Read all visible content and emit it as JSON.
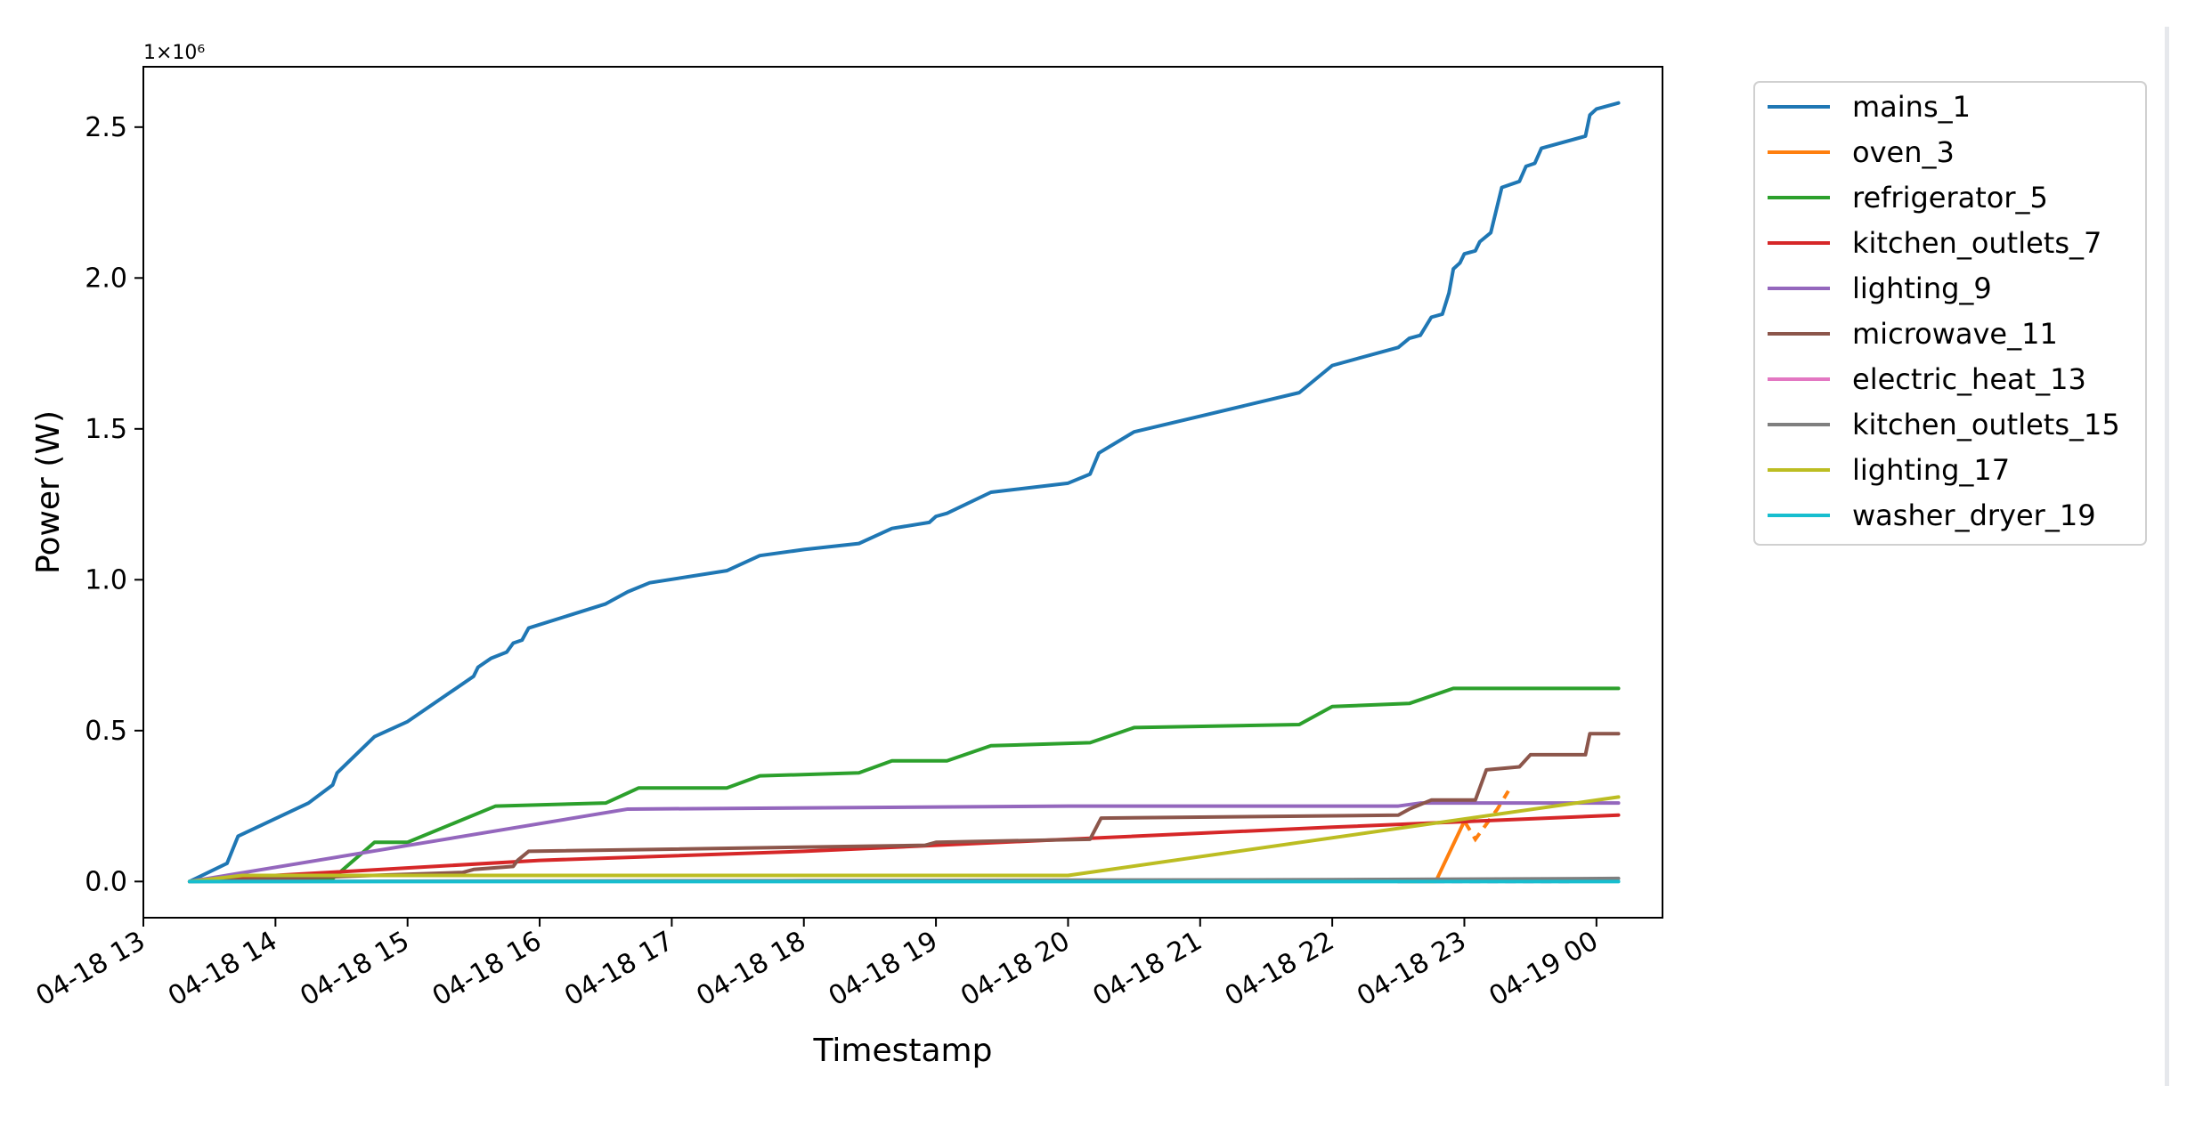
{
  "chart_data": {
    "type": "line",
    "xlabel": "Timestamp",
    "ylabel": "Power (W)",
    "y_multiplier_label": "1×10⁶",
    "xlim": [
      "2011-04-18 13:00",
      "2011-04-19 00:30"
    ],
    "ylim": [
      -0.12,
      2.7
    ],
    "x_ticks": [
      "04-18 13",
      "04-18 14",
      "04-18 15",
      "04-18 16",
      "04-18 17",
      "04-18 18",
      "04-18 19",
      "04-18 20",
      "04-18 21",
      "04-18 22",
      "04-18 23",
      "04-19 00"
    ],
    "y_ticks": [
      "0.0",
      "0.5",
      "1.0",
      "1.5",
      "2.0",
      "2.5"
    ],
    "legend_position": "outside-right-top",
    "grid": false,
    "series": [
      {
        "name": "mains_1",
        "color": "#1f77b4",
        "points": [
          [
            "2011-04-18 13:21",
            0.0
          ],
          [
            "2011-04-18 13:38",
            0.06
          ],
          [
            "2011-04-18 13:43",
            0.15
          ],
          [
            "2011-04-18 14:15",
            0.26
          ],
          [
            "2011-04-18 14:26",
            0.32
          ],
          [
            "2011-04-18 14:28",
            0.36
          ],
          [
            "2011-04-18 14:45",
            0.48
          ],
          [
            "2011-04-18 15:00",
            0.53
          ],
          [
            "2011-04-18 15:30",
            0.68
          ],
          [
            "2011-04-18 15:32",
            0.71
          ],
          [
            "2011-04-18 15:38",
            0.74
          ],
          [
            "2011-04-18 15:45",
            0.76
          ],
          [
            "2011-04-18 15:48",
            0.79
          ],
          [
            "2011-04-18 15:52",
            0.8
          ],
          [
            "2011-04-18 15:55",
            0.84
          ],
          [
            "2011-04-18 16:30",
            0.92
          ],
          [
            "2011-04-18 16:40",
            0.96
          ],
          [
            "2011-04-18 16:50",
            0.99
          ],
          [
            "2011-04-18 17:25",
            1.03
          ],
          [
            "2011-04-18 17:40",
            1.08
          ],
          [
            "2011-04-18 18:00",
            1.1
          ],
          [
            "2011-04-18 18:25",
            1.12
          ],
          [
            "2011-04-18 18:40",
            1.17
          ],
          [
            "2011-04-18 18:57",
            1.19
          ],
          [
            "2011-04-18 19:00",
            1.21
          ],
          [
            "2011-04-18 19:05",
            1.22
          ],
          [
            "2011-04-18 19:25",
            1.29
          ],
          [
            "2011-04-18 20:00",
            1.32
          ],
          [
            "2011-04-18 20:10",
            1.35
          ],
          [
            "2011-04-18 20:14",
            1.42
          ],
          [
            "2011-04-18 20:30",
            1.49
          ],
          [
            "2011-04-18 21:45",
            1.62
          ],
          [
            "2011-04-18 22:00",
            1.71
          ],
          [
            "2011-04-18 22:30",
            1.77
          ],
          [
            "2011-04-18 22:35",
            1.8
          ],
          [
            "2011-04-18 22:40",
            1.81
          ],
          [
            "2011-04-18 22:45",
            1.87
          ],
          [
            "2011-04-18 22:50",
            1.88
          ],
          [
            "2011-04-18 22:53",
            1.95
          ],
          [
            "2011-04-18 22:55",
            2.03
          ],
          [
            "2011-04-18 22:58",
            2.05
          ],
          [
            "2011-04-18 23:00",
            2.08
          ],
          [
            "2011-04-18 23:05",
            2.09
          ],
          [
            "2011-04-18 23:07",
            2.12
          ],
          [
            "2011-04-18 23:12",
            2.15
          ],
          [
            "2011-04-18 23:17",
            2.3
          ],
          [
            "2011-04-18 23:25",
            2.32
          ],
          [
            "2011-04-18 23:28",
            2.37
          ],
          [
            "2011-04-18 23:32",
            2.38
          ],
          [
            "2011-04-18 23:35",
            2.43
          ],
          [
            "2011-04-18 23:55",
            2.47
          ],
          [
            "2011-04-18 23:57",
            2.54
          ],
          [
            "2011-04-19 00:00",
            2.56
          ],
          [
            "2011-04-19 00:10",
            2.58
          ]
        ]
      },
      {
        "name": "oven_3",
        "color": "#ff7f0e",
        "dashed_after": 2,
        "points": [
          [
            "2011-04-18 22:30",
            0.0
          ],
          [
            "2011-04-18 22:47",
            0.0
          ],
          [
            "2011-04-18 23:00",
            0.2
          ],
          [
            "2011-04-18 23:05",
            0.14
          ],
          [
            "2011-04-18 23:15",
            0.24
          ],
          [
            "2011-04-18 23:20",
            0.3
          ]
        ]
      },
      {
        "name": "refrigerator_5",
        "color": "#2ca02c",
        "points": [
          [
            "2011-04-18 13:21",
            0.0
          ],
          [
            "2011-04-18 14:26",
            0.01
          ],
          [
            "2011-04-18 14:45",
            0.13
          ],
          [
            "2011-04-18 15:00",
            0.13
          ],
          [
            "2011-04-18 15:40",
            0.25
          ],
          [
            "2011-04-18 16:30",
            0.26
          ],
          [
            "2011-04-18 16:45",
            0.31
          ],
          [
            "2011-04-18 17:25",
            0.31
          ],
          [
            "2011-04-18 17:40",
            0.35
          ],
          [
            "2011-04-18 18:25",
            0.36
          ],
          [
            "2011-04-18 18:40",
            0.4
          ],
          [
            "2011-04-18 19:05",
            0.4
          ],
          [
            "2011-04-18 19:25",
            0.45
          ],
          [
            "2011-04-18 20:10",
            0.46
          ],
          [
            "2011-04-18 20:30",
            0.51
          ],
          [
            "2011-04-18 21:45",
            0.52
          ],
          [
            "2011-04-18 22:00",
            0.58
          ],
          [
            "2011-04-18 22:35",
            0.59
          ],
          [
            "2011-04-18 22:55",
            0.64
          ],
          [
            "2011-04-19 00:10",
            0.64
          ]
        ]
      },
      {
        "name": "kitchen_outlets_7",
        "color": "#d62728",
        "points": [
          [
            "2011-04-18 13:21",
            0.0
          ],
          [
            "2011-04-18 14:00",
            0.02
          ],
          [
            "2011-04-18 16:00",
            0.07
          ],
          [
            "2011-04-18 18:00",
            0.1
          ],
          [
            "2011-04-18 20:00",
            0.14
          ],
          [
            "2011-04-18 22:00",
            0.18
          ],
          [
            "2011-04-19 00:10",
            0.22
          ]
        ]
      },
      {
        "name": "lighting_9",
        "color": "#9467bd",
        "points": [
          [
            "2011-04-18 13:21",
            0.0
          ],
          [
            "2011-04-18 16:40",
            0.24
          ],
          [
            "2011-04-18 20:00",
            0.25
          ],
          [
            "2011-04-18 22:30",
            0.25
          ],
          [
            "2011-04-18 22:40",
            0.26
          ],
          [
            "2011-04-19 00:10",
            0.26
          ]
        ]
      },
      {
        "name": "microwave_11",
        "color": "#8c564b",
        "points": [
          [
            "2011-04-18 13:21",
            0.0
          ],
          [
            "2011-04-18 15:25",
            0.03
          ],
          [
            "2011-04-18 15:30",
            0.04
          ],
          [
            "2011-04-18 15:48",
            0.05
          ],
          [
            "2011-04-18 15:50",
            0.07
          ],
          [
            "2011-04-18 15:55",
            0.1
          ],
          [
            "2011-04-18 18:55",
            0.12
          ],
          [
            "2011-04-18 19:00",
            0.13
          ],
          [
            "2011-04-18 20:10",
            0.14
          ],
          [
            "2011-04-18 20:15",
            0.21
          ],
          [
            "2011-04-18 22:30",
            0.22
          ],
          [
            "2011-04-18 22:35",
            0.24
          ],
          [
            "2011-04-18 22:45",
            0.27
          ],
          [
            "2011-04-18 23:05",
            0.27
          ],
          [
            "2011-04-18 23:10",
            0.37
          ],
          [
            "2011-04-18 23:25",
            0.38
          ],
          [
            "2011-04-18 23:30",
            0.42
          ],
          [
            "2011-04-18 23:55",
            0.42
          ],
          [
            "2011-04-18 23:57",
            0.49
          ],
          [
            "2011-04-19 00:10",
            0.49
          ]
        ]
      },
      {
        "name": "electric_heat_13",
        "color": "#e377c2",
        "dashed_after": 0,
        "points": [
          [
            "2011-04-18 22:30",
            0.0
          ],
          [
            "2011-04-18 23:30",
            0.0
          ],
          [
            "2011-04-18 23:50",
            0.0
          ]
        ]
      },
      {
        "name": "kitchen_outlets_15",
        "color": "#7f7f7f",
        "points": [
          [
            "2011-04-18 13:21",
            0.0
          ],
          [
            "2011-04-18 18:00",
            0.003
          ],
          [
            "2011-04-18 22:00",
            0.006
          ],
          [
            "2011-04-19 00:10",
            0.01
          ]
        ]
      },
      {
        "name": "lighting_17",
        "color": "#bcbd22",
        "points": [
          [
            "2011-04-18 13:21",
            0.0
          ],
          [
            "2011-04-18 13:45",
            0.02
          ],
          [
            "2011-04-18 18:55",
            0.02
          ],
          [
            "2011-04-18 19:10",
            0.02
          ],
          [
            "2011-04-18 20:00",
            0.02
          ],
          [
            "2011-04-19 00:10",
            0.28
          ]
        ]
      },
      {
        "name": "washer_dryer_19",
        "color": "#17becf",
        "points": [
          [
            "2011-04-18 13:21",
            0.0
          ],
          [
            "2011-04-19 00:10",
            0.0
          ]
        ]
      }
    ]
  }
}
